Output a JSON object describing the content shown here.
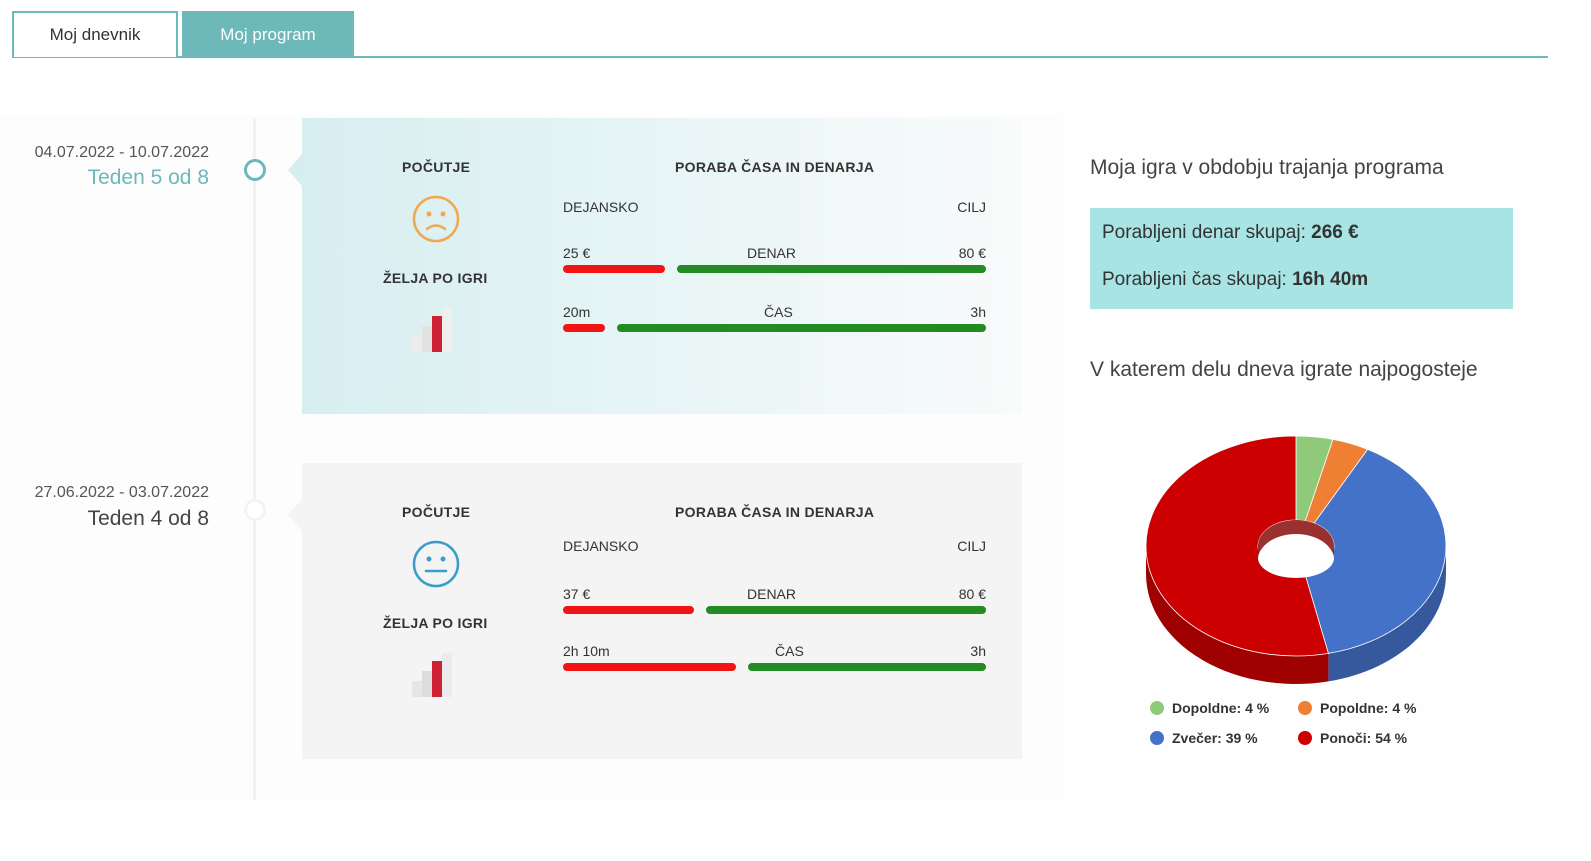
{
  "tabs": [
    {
      "label": "Moj dnevnik",
      "active": false
    },
    {
      "label": "Moj program",
      "active": true
    }
  ],
  "weeks": [
    {
      "date_range": "04.07.2022 - 10.07.2022",
      "label": "Teden 5 od 8",
      "mood_title": "POČUTJE",
      "mood": "sad-face-icon",
      "wish_title": "ŽELJA PO IGRI",
      "usage_title": "PORABA ČASA IN DENARJA",
      "actual_label": "DEJANSKO",
      "goal_label": "CILJ",
      "money": {
        "label": "DENAR",
        "actual": "25 €",
        "goal": "80 €",
        "fraction": 0.24
      },
      "time": {
        "label": "ČAS",
        "actual": "20m",
        "goal": "3h",
        "fraction": 0.1
      }
    },
    {
      "date_range": "27.06.2022 - 03.07.2022",
      "label": "Teden 4 od 8",
      "mood_title": "POČUTJE",
      "mood": "neutral-face-icon",
      "wish_title": "ŽELJA PO IGRI",
      "usage_title": "PORABA ČASA IN DENARJA",
      "actual_label": "DEJANSKO",
      "goal_label": "CILJ",
      "money": {
        "label": "DENAR",
        "actual": "37 €",
        "goal": "80 €",
        "fraction": 0.31
      },
      "time": {
        "label": "ČAS",
        "actual": "2h 10m",
        "goal": "3h",
        "fraction": 0.41
      }
    }
  ],
  "summary": {
    "title": "Moja igra v obdobju trajanja programa",
    "money_label": "Porabljeni denar skupaj:",
    "money_value": "266 €",
    "time_label": "Porabljeni čas skupaj:",
    "time_value": "16h 40m",
    "chart_title": "V katerem delu dneva igrate najpogosteje"
  },
  "colors": {
    "accent": "#6db8b8",
    "summary_bg": "#a8e4e4",
    "red": "#f01414",
    "green": "#228b22"
  },
  "chart_data": {
    "type": "pie",
    "title": "V katerem delu dneva igrate najpogosteje",
    "slices": [
      {
        "name": "Dopoldne",
        "value": 4,
        "label": "Dopoldne: 4 %",
        "color": "#8fc97a"
      },
      {
        "name": "Popoldne",
        "value": 4,
        "label": "Popoldne: 4 %",
        "color": "#ef7f33"
      },
      {
        "name": "Zvečer",
        "value": 39,
        "label": "Zvečer: 39 %",
        "color": "#4472c8"
      },
      {
        "name": "Ponoči",
        "value": 54,
        "label": "Ponoči: 54 %",
        "color": "#cc0000"
      }
    ],
    "legend": "bottom",
    "style": "3d-donut"
  }
}
